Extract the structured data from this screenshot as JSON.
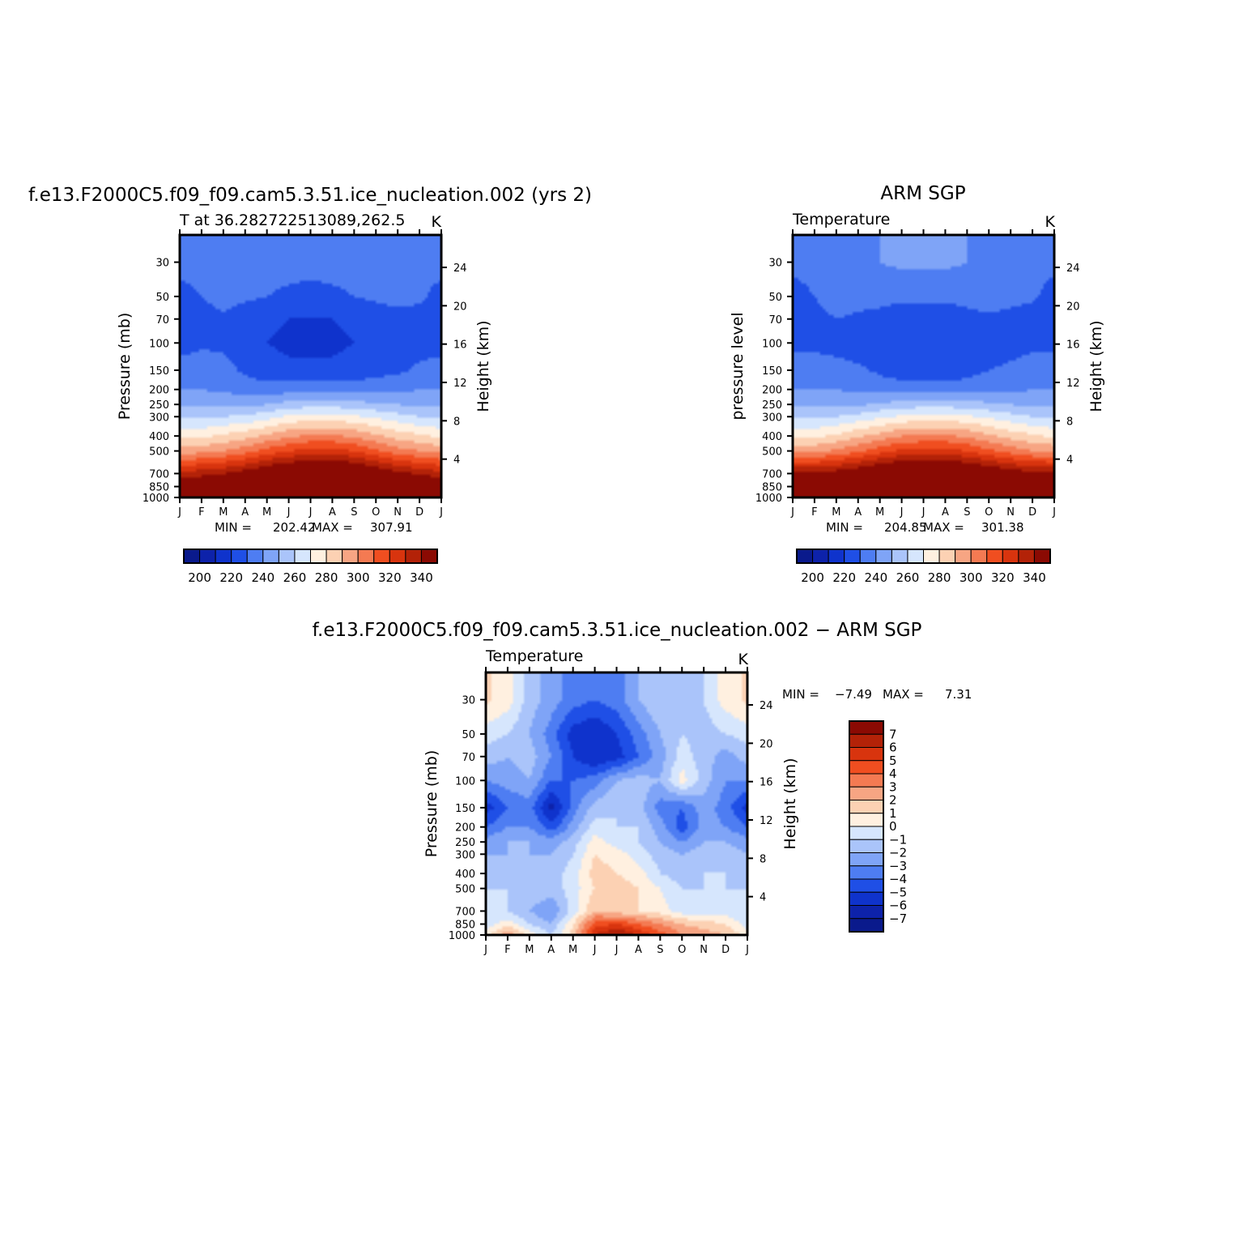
{
  "months": [
    "J",
    "F",
    "M",
    "A",
    "M",
    "J",
    "J",
    "A",
    "S",
    "O",
    "N",
    "D",
    "J"
  ],
  "pressure_ticks": [
    30,
    50,
    70,
    100,
    150,
    200,
    250,
    300,
    400,
    500,
    700,
    850,
    1000
  ],
  "height_ticks": [
    4,
    8,
    12,
    16,
    20,
    24
  ],
  "abs_colorbar": {
    "labels": [
      "200",
      "220",
      "240",
      "260",
      "280",
      "300",
      "320",
      "340"
    ],
    "colors": [
      "#0a1a8c",
      "#0d22aa",
      "#0f33cc",
      "#1f4fe6",
      "#4e7df2",
      "#7fa4f7",
      "#aac4fa",
      "#d6e6fd",
      "#fff0e0",
      "#fcd1b3",
      "#f7a583",
      "#f47a52",
      "#f04e20",
      "#d8340e",
      "#b32208",
      "#8b0a03"
    ]
  },
  "diff_colorbar": {
    "labels": [
      "7",
      "6",
      "5",
      "4",
      "3",
      "2",
      "1",
      "0",
      "−1",
      "−2",
      "−3",
      "−4",
      "−5",
      "−6",
      "−7"
    ],
    "colors": [
      "#8b0a03",
      "#b32208",
      "#d8340e",
      "#f04e20",
      "#f47a52",
      "#f7a583",
      "#fcd1b3",
      "#fff0e0",
      "#d6e6fd",
      "#aac4fa",
      "#7fa4f7",
      "#4e7df2",
      "#1f4fe6",
      "#0f33cc",
      "#0d22aa",
      "#0a1a8c"
    ]
  },
  "panels": {
    "model": {
      "title": "f.e13.F2000C5.f09_f09.cam5.3.51.ice_nucleation.002 (yrs 2)",
      "subtitle_left": "T at 36.282722513089,262.5",
      "subtitle_right": "K",
      "ylabel": "Pressure (mb)",
      "y2label": "Height (km)",
      "min_label": "MIN =",
      "min_value": "202.42",
      "max_label": "MAX =",
      "max_value": "307.91"
    },
    "obs": {
      "title": "ARM SGP",
      "subtitle_left": "Temperature",
      "subtitle_right": "K",
      "ylabel": "pressure level",
      "y2label": "Height (km)",
      "min_label": "MIN =",
      "min_value": "204.85",
      "max_label": "MAX =",
      "max_value": "301.38"
    },
    "diff": {
      "title": "f.e13.F2000C5.f09_f09.cam5.3.51.ice_nucleation.002 − ARM SGP",
      "subtitle_left": "Temperature",
      "subtitle_right": "K",
      "ylabel": "Pressure (mb)",
      "y2label": "Height (km)",
      "min_label": "MIN =",
      "min_value": "−7.49",
      "max_label": "MAX =",
      "max_value": "7.31"
    }
  },
  "chart_data": [
    {
      "type": "heatmap",
      "title": "f.e13.F2000C5.f09_f09.cam5.3.51.ice_nucleation.002 (yrs 2)",
      "subtitle": "T at 36.282722513089,262.5",
      "units": "K",
      "xlabel": "",
      "ylabel": "Pressure (mb)",
      "y2label": "Height (km)",
      "x": [
        "J",
        "F",
        "M",
        "A",
        "M",
        "J",
        "J",
        "A",
        "S",
        "O",
        "N",
        "D",
        "J"
      ],
      "y": [
        30,
        50,
        70,
        100,
        150,
        200,
        250,
        300,
        400,
        500,
        700,
        850,
        1000
      ],
      "ylim": [
        1000,
        20
      ],
      "yscale": "log",
      "contour_levels": [
        195,
        200,
        205,
        210,
        215,
        220,
        225,
        230,
        235,
        240,
        245,
        250,
        255,
        260,
        265,
        270,
        275,
        280,
        285,
        290,
        295,
        300,
        305,
        310
      ],
      "values": [
        [
          212,
          212,
          212,
          212,
          212,
          212,
          212,
          212,
          212,
          212,
          212,
          212,
          212
        ],
        [
          208,
          210,
          212,
          211,
          210,
          209,
          208,
          209,
          210,
          211,
          212,
          211,
          208
        ],
        [
          207,
          208,
          209,
          207,
          206,
          205,
          205,
          205,
          206,
          207,
          208,
          208,
          207
        ],
        [
          208,
          209,
          209,
          207,
          205,
          204,
          204,
          204,
          205,
          206,
          207,
          208,
          208
        ],
        [
          212,
          213,
          212,
          209,
          207,
          206,
          206,
          206,
          207,
          208,
          209,
          211,
          212
        ],
        [
          215,
          215,
          214,
          213,
          212,
          213,
          214,
          214,
          213,
          213,
          214,
          215,
          215
        ],
        [
          219,
          219,
          219,
          219,
          220,
          222,
          223,
          223,
          222,
          221,
          220,
          219,
          219
        ],
        [
          224,
          224,
          225,
          226,
          228,
          231,
          232,
          232,
          231,
          229,
          227,
          225,
          224
        ],
        [
          234,
          234,
          236,
          238,
          241,
          244,
          246,
          246,
          244,
          241,
          238,
          236,
          234
        ],
        [
          243,
          243,
          245,
          248,
          252,
          255,
          257,
          257,
          255,
          251,
          247,
          245,
          243
        ],
        [
          262,
          263,
          265,
          268,
          272,
          275,
          277,
          277,
          275,
          271,
          267,
          264,
          262
        ],
        [
          272,
          273,
          276,
          280,
          285,
          289,
          291,
          290,
          287,
          283,
          278,
          274,
          272
        ],
        [
          278,
          279,
          282,
          287,
          292,
          297,
          300,
          299,
          295,
          290,
          284,
          280,
          278
        ]
      ]
    },
    {
      "type": "heatmap",
      "title": "ARM SGP",
      "subtitle": "Temperature",
      "units": "K",
      "xlabel": "",
      "ylabel": "pressure level",
      "y2label": "Height (km)",
      "x": [
        "J",
        "F",
        "M",
        "A",
        "M",
        "J",
        "J",
        "A",
        "S",
        "O",
        "N",
        "D",
        "J"
      ],
      "y": [
        30,
        50,
        70,
        100,
        150,
        200,
        250,
        300,
        400,
        500,
        700,
        850,
        1000
      ],
      "ylim": [
        1000,
        20
      ],
      "yscale": "log",
      "contour_levels": [
        195,
        200,
        205,
        210,
        215,
        220,
        225,
        230,
        235,
        240,
        245,
        250,
        255,
        260,
        265,
        270,
        275,
        280,
        285,
        290,
        295,
        300,
        305,
        310
      ],
      "values": [
        [
          212,
          213,
          213,
          214,
          215,
          216,
          216,
          216,
          215,
          214,
          213,
          213,
          212
        ],
        [
          207,
          210,
          213,
          212,
          212,
          211,
          211,
          211,
          212,
          213,
          212,
          211,
          207
        ],
        [
          207,
          208,
          210,
          209,
          208,
          207,
          207,
          207,
          208,
          209,
          208,
          207,
          207
        ],
        [
          209,
          209,
          208,
          207,
          206,
          205,
          205,
          205,
          206,
          207,
          208,
          209,
          209
        ],
        [
          212,
          212,
          212,
          211,
          209,
          207,
          206,
          206,
          208,
          210,
          211,
          212,
          212
        ],
        [
          215,
          215,
          215,
          214,
          213,
          213,
          213,
          213,
          213,
          214,
          214,
          215,
          215
        ],
        [
          219,
          219,
          219,
          219,
          221,
          222,
          223,
          223,
          222,
          221,
          220,
          219,
          219
        ],
        [
          224,
          224,
          225,
          227,
          229,
          231,
          232,
          232,
          231,
          229,
          227,
          225,
          224
        ],
        [
          234,
          234,
          236,
          239,
          242,
          245,
          246,
          246,
          244,
          241,
          238,
          236,
          234
        ],
        [
          244,
          244,
          246,
          249,
          253,
          256,
          257,
          257,
          255,
          251,
          248,
          245,
          244
        ],
        [
          266,
          266,
          268,
          271,
          274,
          277,
          278,
          277,
          275,
          272,
          269,
          267,
          266
        ],
        [
          275,
          276,
          279,
          283,
          287,
          291,
          292,
          291,
          288,
          284,
          280,
          277,
          275
        ],
        [
          280,
          281,
          284,
          289,
          293,
          297,
          299,
          298,
          294,
          290,
          285,
          282,
          280
        ]
      ]
    },
    {
      "type": "heatmap",
      "title": "f.e13.F2000C5.f09_f09.cam5.3.51.ice_nucleation.002 − ARM SGP",
      "subtitle": "Temperature",
      "units": "K",
      "xlabel": "",
      "ylabel": "Pressure (mb)",
      "y2label": "Height (km)",
      "x": [
        "J",
        "F",
        "M",
        "A",
        "M",
        "J",
        "J",
        "A",
        "S",
        "O",
        "N",
        "D",
        "J"
      ],
      "y": [
        30,
        50,
        70,
        100,
        150,
        200,
        250,
        300,
        400,
        500,
        700,
        850,
        1000
      ],
      "ylim": [
        1000,
        20
      ],
      "yscale": "log",
      "contour_levels": [
        -7,
        -6,
        -5,
        -4,
        -3,
        -2,
        -1,
        0,
        1,
        2,
        3,
        4,
        5,
        6,
        7
      ],
      "values": [
        [
          1.2,
          0.5,
          -1.5,
          -2.5,
          -3.5,
          -4.0,
          -3.5,
          -2.0,
          -1.0,
          -1.5,
          -1.0,
          0.5,
          1.2
        ],
        [
          -0.5,
          -1.0,
          -2.0,
          -3.5,
          -5.5,
          -6.0,
          -5.0,
          -3.5,
          -2.0,
          -1.0,
          -1.5,
          -1.0,
          -0.5
        ],
        [
          -1.5,
          -2.0,
          -1.5,
          -3.0,
          -5.0,
          -6.0,
          -5.5,
          -4.0,
          -2.5,
          -0.5,
          -1.5,
          -2.5,
          -1.5
        ],
        [
          -3.0,
          -2.5,
          -2.0,
          -4.0,
          -4.0,
          -3.5,
          -2.0,
          -1.5,
          -2.0,
          0.5,
          -1.5,
          -3.0,
          -3.0
        ],
        [
          -5.5,
          -4.0,
          -3.5,
          -6.5,
          -3.5,
          -1.5,
          -1.0,
          -1.5,
          -3.5,
          -4.0,
          -2.5,
          -3.5,
          -5.5
        ],
        [
          -4.0,
          -3.0,
          -3.0,
          -4.5,
          -2.5,
          -0.5,
          -1.0,
          -1.0,
          -2.5,
          -4.5,
          -2.5,
          -3.0,
          -4.0
        ],
        [
          -2.5,
          -2.0,
          -2.0,
          -2.5,
          -1.5,
          0.5,
          -0.5,
          -1.0,
          -2.0,
          -3.0,
          -2.0,
          -2.0,
          -2.5
        ],
        [
          -2.0,
          -2.0,
          -2.0,
          -2.0,
          -1.0,
          1.0,
          0.5,
          -0.5,
          -1.5,
          -2.0,
          -1.5,
          -1.5,
          -2.0
        ],
        [
          -1.5,
          -1.5,
          -1.5,
          -1.5,
          -0.5,
          1.5,
          1.0,
          0.5,
          -1.0,
          -1.5,
          -1.0,
          -1.0,
          -1.5
        ],
        [
          -1.0,
          -1.0,
          -1.0,
          -1.5,
          -0.5,
          1.0,
          1.5,
          1.0,
          0.0,
          -1.0,
          -1.0,
          -1.0,
          -1.0
        ],
        [
          -1.0,
          -1.0,
          -2.0,
          -3.0,
          -0.5,
          2.0,
          1.5,
          1.0,
          0.5,
          -0.5,
          -0.5,
          -0.5,
          -1.0
        ],
        [
          -0.5,
          0.5,
          -1.0,
          -2.0,
          1.0,
          4.5,
          5.0,
          4.0,
          3.0,
          2.0,
          1.5,
          1.0,
          -0.5
        ],
        [
          0.5,
          3.0,
          0.5,
          -1.0,
          1.5,
          6.0,
          7.3,
          6.0,
          4.5,
          3.0,
          2.5,
          2.0,
          0.5
        ]
      ]
    }
  ]
}
